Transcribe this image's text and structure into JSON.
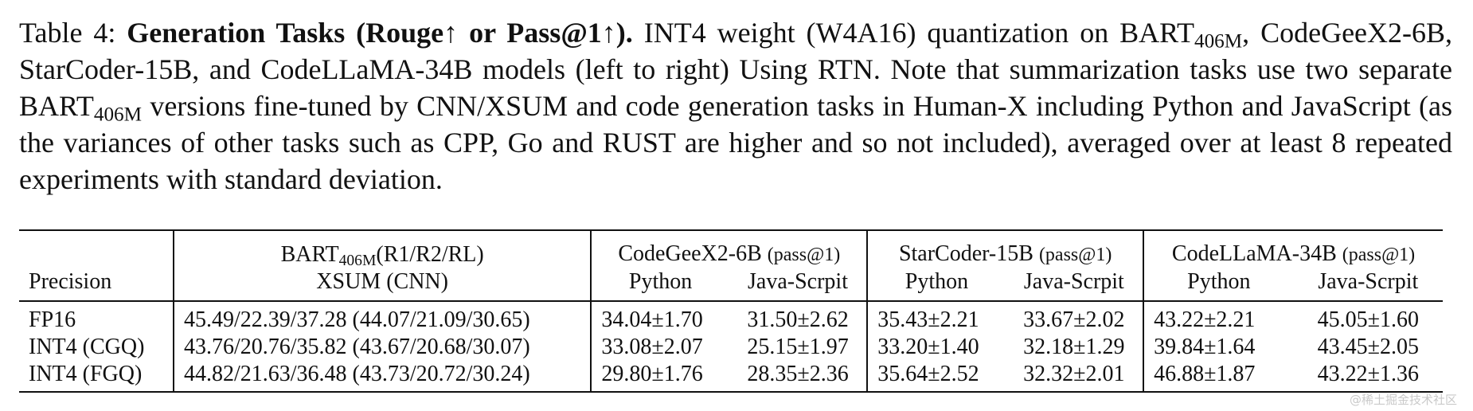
{
  "caption": {
    "label": "Table 4:",
    "title": "Generation Tasks (Rouge↑ or Pass@1↑).",
    "part1": "INT4 weight (W4A16) quantization on BART",
    "sub1": "406M",
    "part2": ", CodeGeeX2-6B, StarCoder-15B, and CodeLLaMA-34B models (left to right) Using RTN. Note that summarization tasks use two separate BART",
    "sub2": "406M",
    "part3": " versions fine-tuned by CNN/XSUM and code generation tasks in Human-X including Python and JavaScript (as the variances of other tasks such as CPP, Go and RUST are higher and so not included), averaged over at least 8 repeated experiments with standard deviation."
  },
  "table": {
    "precision_header": "Precision",
    "bart_header_main": "BART",
    "bart_header_sub": "406M",
    "bart_header_tail": "(R1/R2/RL)",
    "bart_subheader": "XSUM (CNN)",
    "models": [
      {
        "name": "CodeGeeX2-6B",
        "metric": "(pass@1)"
      },
      {
        "name": "StarCoder-15B",
        "metric": "(pass@1)"
      },
      {
        "name": "CodeLLaMA-34B",
        "metric": "(pass@1)"
      }
    ],
    "lang_python": "Python",
    "lang_java": "Java-Scrpit",
    "rows": [
      {
        "precision": "FP16",
        "bart": "45.49/22.39/37.28 (44.07/21.09/30.65)",
        "values": [
          "34.04±1.70",
          "31.50±2.62",
          "35.43±2.21",
          "33.67±2.02",
          "43.22±2.21",
          "45.05±1.60"
        ]
      },
      {
        "precision": "INT4 (CGQ)",
        "bart": "43.76/20.76/35.82 (43.67/20.68/30.07)",
        "values": [
          "33.08±2.07",
          "25.15±1.97",
          "33.20±1.40",
          "32.18±1.29",
          "39.84±1.64",
          "43.45±2.05"
        ]
      },
      {
        "precision": "INT4 (FGQ)",
        "bart": "44.82/21.63/36.48 (43.73/20.72/30.24)",
        "values": [
          "29.80±1.76",
          "28.35±2.36",
          "35.64±2.52",
          "32.32±2.01",
          "46.88±1.87",
          "43.22±1.36"
        ]
      }
    ]
  },
  "watermark": "@稀土掘金技术社区"
}
